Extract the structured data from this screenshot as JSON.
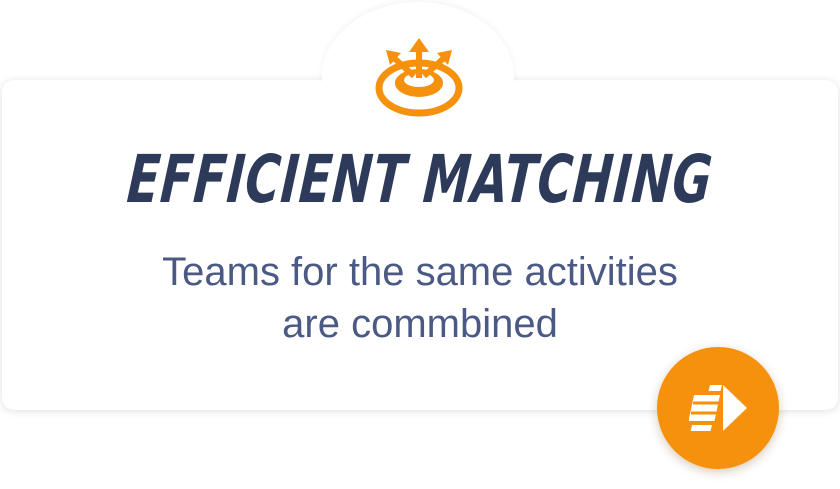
{
  "feature": {
    "icon": "target-arrows-icon",
    "title": "EFFICIENT MATCHING",
    "description_line1": "Teams for the same activities",
    "description_line2": "are commbined"
  },
  "next_button": {
    "icon": "forward-arrow-icon"
  },
  "colors": {
    "accent": "#f5910c",
    "title": "#2e3a5a",
    "text": "#4b5a84"
  }
}
